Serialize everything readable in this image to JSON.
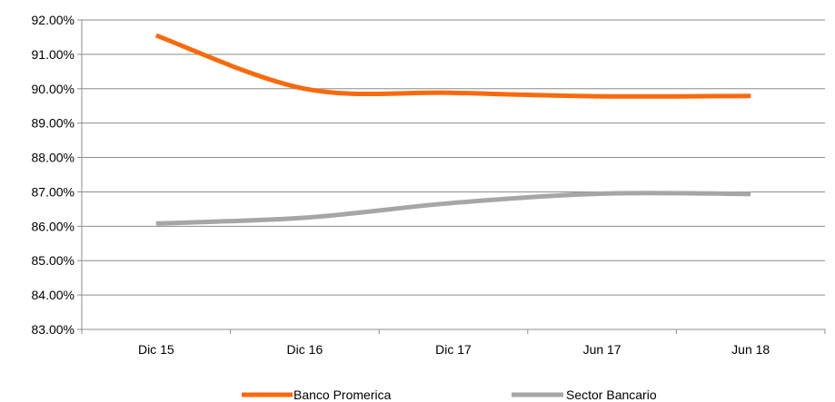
{
  "chart_data": {
    "type": "line",
    "title": "",
    "xlabel": "",
    "ylabel": "",
    "categories": [
      "Dic 15",
      "Dic 16",
      "Dic 17",
      "Jun 17",
      "Jun 18"
    ],
    "y_ticks": [
      "83.00%",
      "84.00%",
      "85.00%",
      "86.00%",
      "87.00%",
      "88.00%",
      "89.00%",
      "90.00%",
      "91.00%",
      "92.00%"
    ],
    "ylim": [
      83,
      92
    ],
    "grid": true,
    "legend_position": "bottom",
    "series": [
      {
        "name": "Banco Promerica",
        "color": "#f96a0d",
        "values": [
          91.55,
          90.0,
          89.88,
          89.78,
          89.79
        ]
      },
      {
        "name": "Sector Bancario",
        "color": "#a6a6a6",
        "values": [
          86.08,
          86.25,
          86.68,
          86.95,
          86.94
        ]
      }
    ]
  }
}
